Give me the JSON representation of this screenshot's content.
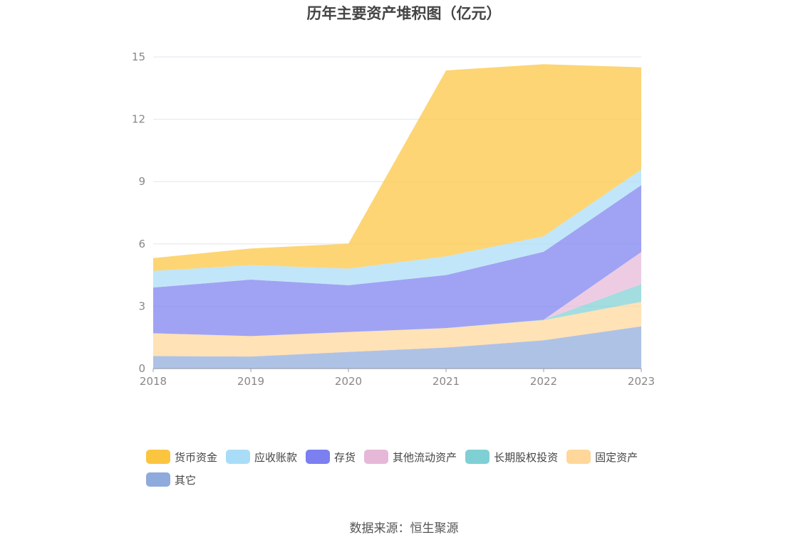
{
  "title": "历年主要资产堆积图（亿元）",
  "source": "数据来源：恒生聚源",
  "chart_data": {
    "type": "area",
    "stacked": true,
    "title": "历年主要资产堆积图（亿元）",
    "x": [
      "2018",
      "2019",
      "2020",
      "2021",
      "2022",
      "2023"
    ],
    "ylim": [
      0,
      15
    ],
    "yticks": [
      0,
      3,
      6,
      9,
      12,
      15
    ],
    "grid": true,
    "legend_position": "bottom",
    "series": [
      {
        "name": "其它",
        "color": "#8faadc",
        "values": [
          0.6,
          0.58,
          0.8,
          1.01,
          1.36,
          2.03
        ]
      },
      {
        "name": "固定资产",
        "color": "#ffd79a",
        "values": [
          1.1,
          0.98,
          0.96,
          0.94,
          0.97,
          1.18
        ]
      },
      {
        "name": "长期股权投资",
        "color": "#7fd0d4",
        "values": [
          0.0,
          0.0,
          0.0,
          0.0,
          0.02,
          0.85
        ]
      },
      {
        "name": "其他流动资产",
        "color": "#e6b8d8",
        "values": [
          0.0,
          0.0,
          0.0,
          0.0,
          0.0,
          1.55
        ]
      },
      {
        "name": "存货",
        "color": "#7b7ff0",
        "values": [
          2.2,
          2.72,
          2.25,
          2.55,
          3.27,
          3.22
        ]
      },
      {
        "name": "应收账款",
        "color": "#a9ddf7",
        "values": [
          0.8,
          0.7,
          0.8,
          0.9,
          0.75,
          0.75
        ]
      },
      {
        "name": "货币资金",
        "color": "#fcc540",
        "values": [
          0.62,
          0.8,
          1.2,
          8.95,
          8.28,
          4.92
        ]
      }
    ],
    "legend": [
      "货币资金",
      "应收账款",
      "存货",
      "其他流动资产",
      "长期股权投资",
      "固定资产",
      "其它"
    ]
  }
}
